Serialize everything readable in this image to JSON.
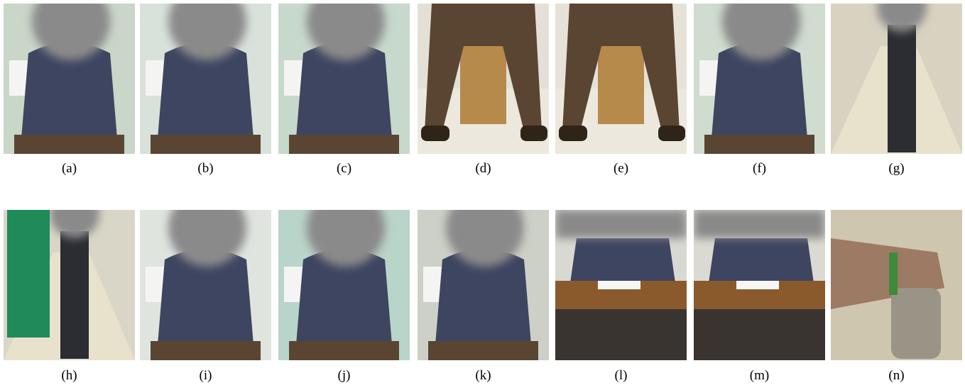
{
  "figure": {
    "panels": [
      {
        "caption": "(a)"
      },
      {
        "caption": "(b)"
      },
      {
        "caption": "(c)"
      },
      {
        "caption": "(d)"
      },
      {
        "caption": "(e)"
      },
      {
        "caption": "(f)"
      },
      {
        "caption": "(g)"
      },
      {
        "caption": "(h)"
      },
      {
        "caption": "(i)"
      },
      {
        "caption": "(j)"
      },
      {
        "caption": "(k)"
      },
      {
        "caption": "(l)"
      },
      {
        "caption": "(m)"
      },
      {
        "caption": "(n)"
      }
    ]
  }
}
